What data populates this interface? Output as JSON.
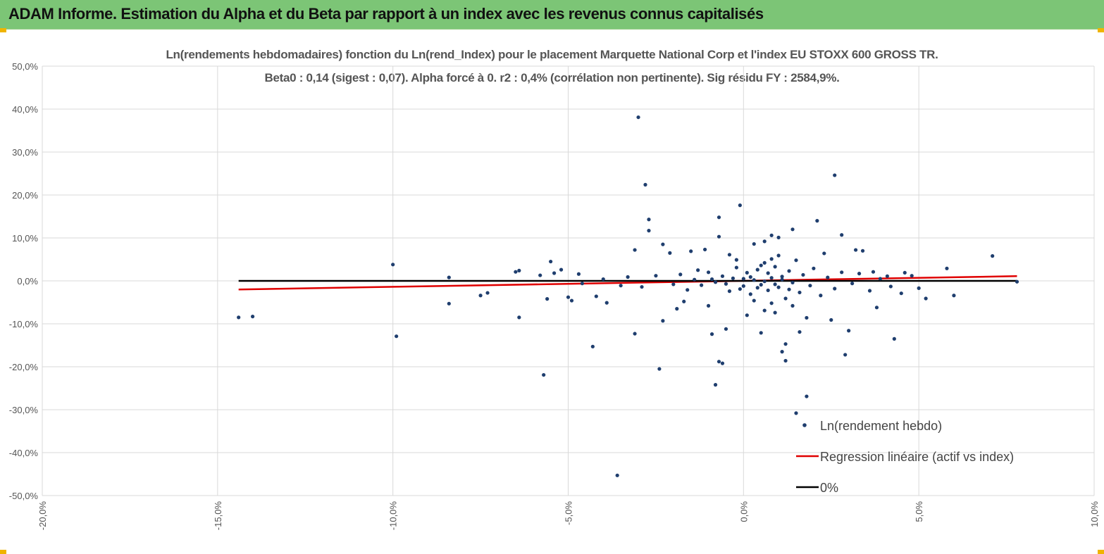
{
  "header": {
    "title": "ADAM Informe. Estimation du Alpha et du Beta par rapport à un index avec les revenus connus capitalisés",
    "background_color": "#7cc576",
    "corner_color": "#f0b400"
  },
  "chart_data": {
    "type": "scatter",
    "title": "Ln(rendements hebdomadaires) fonction du Ln(rend_Index) pour le placement Marquette National Corp et l'index EU STOXX 600 GROSS TR.",
    "subtitle": "Beta0 : 0,14 (sigest : 0,07). Alpha forcé à 0. r2 : 0,4% (corrélation non pertinente). Sig résidu FY : 2584,9%.",
    "xlabel": "",
    "ylabel": "",
    "xlim": [
      -20,
      10
    ],
    "ylim": [
      -50,
      50
    ],
    "x_ticks": [
      -20,
      -15,
      -10,
      -5,
      0,
      5,
      10
    ],
    "y_ticks": [
      50,
      40,
      30,
      20,
      10,
      0,
      -10,
      -20,
      -30,
      -40,
      -50
    ],
    "x_tick_labels": [
      "-20,0%",
      "-15,0%",
      "-10,0%",
      "-5,0%",
      "0,0%",
      "5,0%",
      "10,0%"
    ],
    "y_tick_labels": [
      "50,0%",
      "40,0%",
      "30,0%",
      "20,0%",
      "10,0%",
      "0,0%",
      "-10,0%",
      "-20,0%",
      "-30,0%",
      "-40,0%",
      "-50,0%"
    ],
    "grid": true,
    "legend_position": "bottom-right",
    "legend": [
      {
        "label": "Ln(rendement hebdo)",
        "kind": "marker",
        "color": "#1f3e6e"
      },
      {
        "label": "Regression linéaire (actif vs index)",
        "kind": "line",
        "color": "#e00000"
      },
      {
        "label": "0%",
        "kind": "line",
        "color": "#000000"
      }
    ],
    "series": [
      {
        "name": "Ln(rendement hebdo)",
        "type": "scatter",
        "color": "#1f3e6e",
        "points": [
          [
            -14.4,
            -8.5
          ],
          [
            -14.0,
            -8.3
          ],
          [
            -10.0,
            3.8
          ],
          [
            -9.9,
            -12.9
          ],
          [
            -8.4,
            0.8
          ],
          [
            -8.4,
            -5.3
          ],
          [
            -7.5,
            -3.4
          ],
          [
            -7.3,
            -2.8
          ],
          [
            -6.5,
            2.1
          ],
          [
            -6.4,
            2.4
          ],
          [
            -6.4,
            -8.5
          ],
          [
            -5.8,
            1.3
          ],
          [
            -5.7,
            -21.9
          ],
          [
            -5.6,
            -4.2
          ],
          [
            -5.5,
            4.5
          ],
          [
            -5.4,
            1.8
          ],
          [
            -5.2,
            2.6
          ],
          [
            -5.0,
            -3.8
          ],
          [
            -4.9,
            -4.6
          ],
          [
            -4.7,
            1.6
          ],
          [
            -4.3,
            -15.3
          ],
          [
            -4.2,
            -3.6
          ],
          [
            -3.9,
            -5.1
          ],
          [
            -3.6,
            -45.3
          ],
          [
            -3.1,
            -12.3
          ],
          [
            -3.1,
            7.2
          ],
          [
            -3.0,
            38.1
          ],
          [
            -2.8,
            22.4
          ],
          [
            -2.7,
            14.3
          ],
          [
            -2.7,
            11.7
          ],
          [
            -2.4,
            -20.5
          ],
          [
            -2.3,
            -9.3
          ],
          [
            -2.3,
            8.5
          ],
          [
            -2.1,
            6.5
          ],
          [
            -1.9,
            -6.5
          ],
          [
            -1.7,
            -4.8
          ],
          [
            -1.5,
            6.9
          ],
          [
            -1.3,
            2.5
          ],
          [
            -1.1,
            7.3
          ],
          [
            -1.0,
            -5.8
          ],
          [
            -0.9,
            -12.4
          ],
          [
            -0.8,
            -24.2
          ],
          [
            -0.7,
            -18.8
          ],
          [
            -0.7,
            14.8
          ],
          [
            -0.7,
            10.3
          ],
          [
            -0.6,
            -19.2
          ],
          [
            -0.5,
            -11.2
          ],
          [
            -0.4,
            6.1
          ],
          [
            -0.1,
            17.6
          ],
          [
            0.1,
            -8.0
          ],
          [
            0.3,
            8.6
          ],
          [
            0.5,
            -12.1
          ],
          [
            0.6,
            9.2
          ],
          [
            0.8,
            10.6
          ],
          [
            0.8,
            5.1
          ],
          [
            0.9,
            -7.4
          ],
          [
            1.0,
            10.1
          ],
          [
            1.1,
            -16.5
          ],
          [
            1.2,
            -14.7
          ],
          [
            1.2,
            -18.6
          ],
          [
            1.4,
            12.0
          ],
          [
            1.5,
            -30.8
          ],
          [
            1.6,
            -11.9
          ],
          [
            1.8,
            -26.9
          ],
          [
            1.8,
            -8.6
          ],
          [
            2.1,
            14.0
          ],
          [
            2.3,
            6.4
          ],
          [
            2.5,
            -9.1
          ],
          [
            2.6,
            24.6
          ],
          [
            2.8,
            10.7
          ],
          [
            2.9,
            -17.2
          ],
          [
            3.0,
            -11.6
          ],
          [
            3.2,
            7.2
          ],
          [
            3.4,
            7.0
          ],
          [
            3.7,
            2.1
          ],
          [
            3.8,
            -6.2
          ],
          [
            4.1,
            1.1
          ],
          [
            4.3,
            -13.5
          ],
          [
            4.5,
            -2.9
          ],
          [
            4.8,
            1.2
          ],
          [
            5.0,
            -1.7
          ],
          [
            5.2,
            -4.1
          ],
          [
            5.8,
            2.9
          ],
          [
            6.0,
            -3.4
          ],
          [
            7.1,
            5.8
          ],
          [
            7.8,
            -0.2
          ],
          [
            -4.6,
            -0.6
          ],
          [
            -4.0,
            0.4
          ],
          [
            -3.5,
            -1.1
          ],
          [
            -3.3,
            0.9
          ],
          [
            -2.9,
            -1.4
          ],
          [
            -2.5,
            1.2
          ],
          [
            -2.0,
            -0.8
          ],
          [
            -1.8,
            1.5
          ],
          [
            -1.6,
            -2.1
          ],
          [
            -1.4,
            0.3
          ],
          [
            -1.2,
            -1.0
          ],
          [
            -1.0,
            2.0
          ],
          [
            -0.8,
            -0.3
          ],
          [
            -0.6,
            1.1
          ],
          [
            -0.4,
            -2.4
          ],
          [
            -0.3,
            0.6
          ],
          [
            -0.2,
            3.1
          ],
          [
            0.0,
            -1.2
          ],
          [
            0.1,
            1.9
          ],
          [
            0.2,
            -3.1
          ],
          [
            0.3,
            0.2
          ],
          [
            0.4,
            2.6
          ],
          [
            0.5,
            -0.9
          ],
          [
            0.6,
            4.2
          ],
          [
            0.7,
            -2.2
          ],
          [
            0.8,
            0.7
          ],
          [
            0.9,
            3.3
          ],
          [
            1.0,
            -1.5
          ],
          [
            1.1,
            1.0
          ],
          [
            1.2,
            -4.1
          ],
          [
            1.3,
            2.3
          ],
          [
            1.4,
            -0.4
          ],
          [
            1.5,
            4.8
          ],
          [
            1.6,
            -2.7
          ],
          [
            1.7,
            1.4
          ],
          [
            1.9,
            -1.1
          ],
          [
            2.0,
            2.9
          ],
          [
            2.2,
            -3.4
          ],
          [
            2.4,
            0.8
          ],
          [
            2.6,
            -1.8
          ],
          [
            2.8,
            2.0
          ],
          [
            3.1,
            -0.6
          ],
          [
            3.3,
            1.7
          ],
          [
            3.6,
            -2.3
          ],
          [
            3.9,
            0.5
          ],
          [
            4.2,
            -1.3
          ],
          [
            4.6,
            1.9
          ],
          [
            -0.9,
            0.4
          ],
          [
            -0.5,
            -0.7
          ],
          [
            0.2,
            0.9
          ],
          [
            0.4,
            -1.6
          ],
          [
            0.6,
            -0.1
          ],
          [
            0.7,
            1.8
          ],
          [
            0.9,
            -0.8
          ],
          [
            1.1,
            0.3
          ],
          [
            1.3,
            -2.0
          ],
          [
            0.0,
            0.5
          ],
          [
            -0.1,
            -1.9
          ],
          [
            0.5,
            3.6
          ],
          [
            0.8,
            -5.2
          ],
          [
            1.0,
            5.9
          ],
          [
            0.3,
            -4.6
          ],
          [
            -0.2,
            4.9
          ],
          [
            1.4,
            -5.8
          ],
          [
            0.6,
            -6.9
          ]
        ]
      },
      {
        "name": "Regression linéaire (actif vs index)",
        "type": "line",
        "color": "#e00000",
        "x": [
          -14.4,
          7.8
        ],
        "y": [
          -2.0,
          1.1
        ]
      },
      {
        "name": "0%",
        "type": "line",
        "color": "#000000",
        "x": [
          -14.4,
          7.8
        ],
        "y": [
          0,
          0
        ]
      }
    ]
  }
}
